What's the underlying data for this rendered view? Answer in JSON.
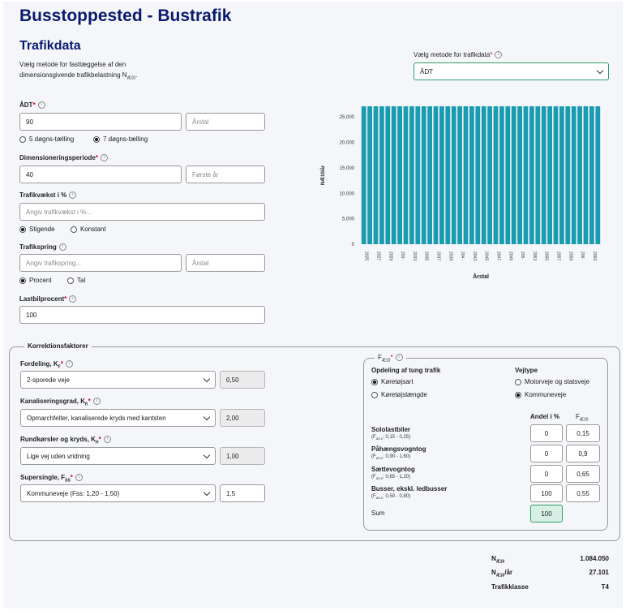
{
  "header": {
    "title": "Busstoppested - Bustrafik"
  },
  "trafikdata": {
    "title": "Trafikdata",
    "description_line1": "Vælg metode for fastlæggelse af den",
    "description_line2": "dimensionsgivende trafikbelastning N",
    "description_sub": "Æ10",
    "description_end": ".",
    "method_label": "Vælg metode for trafikdata",
    "method_value": "ÅDT"
  },
  "form": {
    "adt_label": "ÅDT",
    "adt_value": "90",
    "aarstal_placeholder": "Årstal",
    "counting_options": [
      "5 døgns-tælling",
      "7 døgns-tælling"
    ],
    "counting_selected": 1,
    "periode_label": "Dimensioneringsperiode",
    "periode_value": "40",
    "foerste_aar_placeholder": "Første år",
    "vaekst_label": "Trafikvækst i %",
    "vaekst_placeholder": "Angiv trafikvækst i %...",
    "vaekst_options": [
      "Stigende",
      "Konstant"
    ],
    "vaekst_selected": 0,
    "spring_label": "Trafikspring",
    "spring_placeholder": "Angiv trafikspring...",
    "spring_aarstal_placeholder": "Årstal",
    "spring_options": [
      "Procent",
      "Tal"
    ],
    "spring_selected": 0,
    "lastbil_label": "Lastbilprocent",
    "lastbil_value": "100"
  },
  "chart_data": {
    "type": "bar",
    "xlabel": "Årstal",
    "ylabel": "NÆ10/år",
    "ylim": [
      0,
      27101
    ],
    "yticks": [
      0,
      5000,
      10000,
      15000,
      20000,
      25000
    ],
    "ytick_labels": [
      "0",
      "5.000",
      "10.000",
      "15.000",
      "20.000",
      "25.000"
    ],
    "categories": [
      "2025",
      "2026",
      "2027",
      "2028",
      "2029",
      "2030",
      "2031",
      "2032",
      "2033",
      "2034",
      "2035",
      "2036",
      "2037",
      "2038",
      "2039",
      "2040",
      "2041",
      "2042",
      "2043",
      "2044",
      "2045",
      "2046",
      "2047",
      "2048",
      "2049",
      "2050",
      "2051",
      "2052",
      "2053",
      "2054",
      "2055",
      "2056",
      "2057",
      "2058",
      "2059",
      "2060",
      "2061",
      "2062",
      "2063",
      "2064"
    ],
    "x_tick_labels": [
      "2025",
      "2027",
      "2029",
      "203·",
      "2033",
      "2035",
      "2037",
      "2039",
      "204·",
      "2043",
      "2045",
      "2047",
      "2049",
      "205·",
      "2053",
      "2055",
      "2057",
      "2059",
      "206·",
      "2063"
    ],
    "values": [
      27101,
      27101,
      27101,
      27101,
      27101,
      27101,
      27101,
      27101,
      27101,
      27101,
      27101,
      27101,
      27101,
      27101,
      27101,
      27101,
      27101,
      27101,
      27101,
      27101,
      27101,
      27101,
      27101,
      27101,
      27101,
      27101,
      27101,
      27101,
      27101,
      27101,
      27101,
      27101,
      27101,
      27101,
      27101,
      27101,
      27101,
      27101,
      27101,
      27101
    ],
    "bar_color": "#1a9bb0",
    "grid": false
  },
  "korrektion": {
    "title": "Korrektionsfaktorer",
    "fordeling_label": "Fordeling, K",
    "fordeling_sub": "F",
    "fordeling_value": "2-sporede veje",
    "fordeling_factor": "0,50",
    "kanal_label": "Kanaliseringsgrad, K",
    "kanal_sub": "K",
    "kanal_value": "Opmarchfelter, kanaliserede kryds med kantsten",
    "kanal_factor": "2,00",
    "rund_label": "Rundkørsler og kryds, K",
    "rund_sub": "H",
    "rund_value": "Lige vej uden vridning",
    "rund_factor": "1,00",
    "super_label": "Supersingle, F",
    "super_sub": "SS",
    "super_value": "Kommuneveje (Fss: 1,20 - 1,50)",
    "super_factor": "1,5"
  },
  "fae": {
    "title": "F",
    "title_sub": "Æ10",
    "opdeling_label": "Opdeling af tung trafik",
    "opdeling_options": [
      "Køretøjsart",
      "Køretøjslængde"
    ],
    "opdeling_selected": 0,
    "vejtype_label": "Vejtype",
    "vejtype_options": [
      "Motorveje og statsveje",
      "Kommuneveje"
    ],
    "vejtype_selected": 1,
    "col_andel": "Andel i %",
    "col_fae": "F",
    "col_fae_sub": "Æ10",
    "rows": [
      {
        "name": "Sololastbiler",
        "range": "(F",
        "range_sub": "Æ10",
        "range_end": ": 0,15 - 0,25)",
        "andel": "0",
        "fae": "0,15"
      },
      {
        "name": "Påhængsvogntog",
        "range": "(F",
        "range_sub": "Æ10",
        "range_end": ": 0,90 - 1,60)",
        "andel": "0",
        "fae": "0,9"
      },
      {
        "name": "Sættevogntog",
        "range": "(F",
        "range_sub": "Æ10",
        "range_end": ": 0,65 - 1,20)",
        "andel": "0",
        "fae": "0,65"
      },
      {
        "name": "Busser, ekskl. ledbusser",
        "range": "(F",
        "range_sub": "Æ10",
        "range_end": ": 0,50 - 0,80)",
        "andel": "100",
        "fae": "0,55"
      }
    ],
    "sum_label": "Sum",
    "sum_value": "100",
    "sum_color": "#d8efe6"
  },
  "results": {
    "nae_label": "N",
    "nae_sub": "Æ10",
    "nae_value": "1.084.050",
    "nae_aar_label": "N",
    "nae_aar_sub": "Æ10",
    "nae_aar_end": "/år",
    "nae_aar_value": "27.101",
    "klasse_label": "Trafikklasse",
    "klasse_value": "T4"
  },
  "colors": {
    "title": "#0a1a6e",
    "accent_border": "#2e9e6a",
    "bar": "#1a9bb0",
    "required": "#d0021b"
  }
}
